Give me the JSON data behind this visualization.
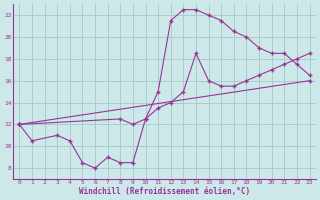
{
  "xlabel": "Windchill (Refroidissement éolien,°C)",
  "bg_color": "#cce8e8",
  "grid_color": "#aacccc",
  "line_color": "#993399",
  "xlim": [
    -0.5,
    23.5
  ],
  "ylim": [
    7,
    23
  ],
  "xticks": [
    0,
    1,
    2,
    3,
    4,
    5,
    6,
    7,
    8,
    9,
    10,
    11,
    12,
    13,
    14,
    15,
    16,
    17,
    18,
    19,
    20,
    21,
    22,
    23
  ],
  "yticks": [
    8,
    10,
    12,
    14,
    16,
    18,
    20,
    22
  ],
  "series1_x": [
    0,
    1,
    3,
    4,
    5,
    6,
    7,
    8,
    9,
    10,
    11,
    12,
    13,
    14,
    15,
    16,
    17,
    18,
    19,
    20,
    21,
    22,
    23
  ],
  "series1_y": [
    12,
    10.5,
    11,
    10.5,
    8.5,
    8.0,
    9.0,
    8.5,
    8.5,
    12.5,
    15.0,
    21.5,
    22.5,
    22.5,
    22.0,
    21.5,
    20.5,
    20.0,
    19.0,
    18.5,
    18.5,
    17.5,
    16.5
  ],
  "series2_x": [
    0,
    8,
    9,
    10,
    11,
    12,
    13,
    14,
    15,
    16,
    17,
    18,
    19,
    20,
    21,
    22,
    23
  ],
  "series2_y": [
    12,
    12.5,
    12.0,
    12.5,
    13.5,
    14.0,
    15.0,
    18.5,
    16.0,
    15.5,
    15.5,
    16.0,
    16.5,
    17.0,
    17.5,
    18.0,
    18.5
  ],
  "series3_x": [
    0,
    23
  ],
  "series3_y": [
    12,
    16.0
  ]
}
